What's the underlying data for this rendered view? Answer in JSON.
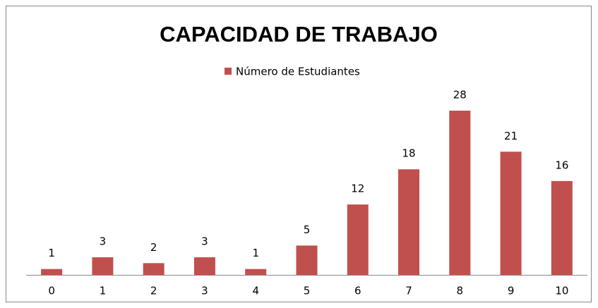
{
  "chart_data": {
    "type": "bar",
    "title": "CAPACIDAD DE TRABAJO",
    "categories": [
      "0",
      "1",
      "2",
      "3",
      "4",
      "5",
      "6",
      "7",
      "8",
      "9",
      "10"
    ],
    "series": [
      {
        "name": "Número de Estudiantes",
        "color": "#c0504d",
        "values": [
          1,
          3,
          2,
          3,
          1,
          5,
          12,
          18,
          28,
          21,
          16
        ]
      }
    ],
    "legend": "top"
  }
}
